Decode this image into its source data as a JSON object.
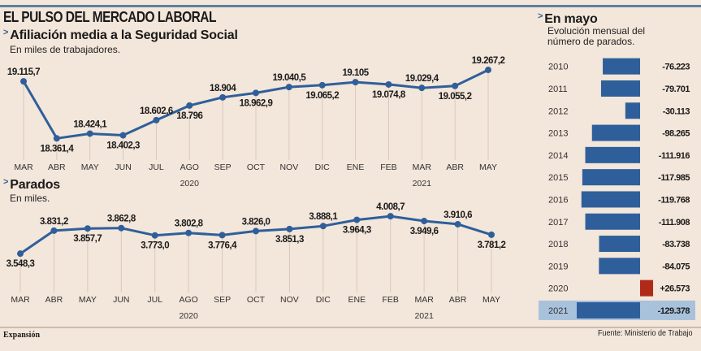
{
  "header": {
    "title": "EL PULSO DEL MERCADO LABORAL"
  },
  "footer": {
    "brand": "Expansión",
    "source": "Fuente: Ministerio de Trabajo"
  },
  "colors": {
    "line": "#2f5f9a",
    "bar_negative": "#2f5f9a",
    "bar_positive": "#b02a1a",
    "highlight_row": "#a9c2dc",
    "background": "#f3e6da"
  },
  "chart_data": [
    {
      "type": "line",
      "title": "Afiliación media a la Seguridad Social",
      "subtitle": "En miles de trabajadores.",
      "categories": [
        "MAR",
        "ABR",
        "MAY",
        "JUN",
        "JUL",
        "AGO",
        "SEP",
        "OCT",
        "NOV",
        "DIC",
        "ENE",
        "FEB",
        "MAR",
        "ABR",
        "MAY"
      ],
      "year_labels": [
        {
          "label": "2020",
          "at_index": 5
        },
        {
          "label": "2021",
          "at_index": 12
        }
      ],
      "values": [
        19115.7,
        18361.4,
        18424.1,
        18402.3,
        18602.6,
        18796,
        18904,
        18962.9,
        19040.5,
        19065.2,
        19105,
        19074.8,
        19029.4,
        19055.2,
        19267.2
      ],
      "value_labels": [
        "19.115,7",
        "18.361,4",
        "18.424,1",
        "18.402,3",
        "18.602,6",
        "18.796",
        "18.904",
        "18.962,9",
        "19.040,5",
        "19.065,2",
        "19.105",
        "19.074,8",
        "19.029,4",
        "19.055,2",
        "19.267,2"
      ],
      "label_positions": [
        "above",
        "below",
        "above",
        "below",
        "above",
        "below",
        "above",
        "below",
        "above",
        "below",
        "above",
        "below",
        "above",
        "below",
        "above"
      ],
      "ylim": [
        18300,
        19300
      ],
      "xlabel": "",
      "ylabel": ""
    },
    {
      "type": "line",
      "title": "Parados",
      "subtitle": "En miles.",
      "categories": [
        "MAR",
        "ABR",
        "MAY",
        "JUN",
        "JUL",
        "AGO",
        "SEP",
        "OCT",
        "NOV",
        "DIC",
        "ENE",
        "FEB",
        "MAR",
        "ABR",
        "MAY"
      ],
      "year_labels": [
        {
          "label": "2020",
          "at_index": 5
        },
        {
          "label": "2021",
          "at_index": 12
        }
      ],
      "values": [
        3548.3,
        3831.2,
        3857.7,
        3862.8,
        3773.0,
        3802.8,
        3776.4,
        3826.0,
        3851.3,
        3888.1,
        3964.3,
        4008.7,
        3949.6,
        3910.6,
        3781.2
      ],
      "value_labels": [
        "3.548,3",
        "3.831,2",
        "3.857,7",
        "3.862,8",
        "3.773,0",
        "3.802,8",
        "3.776,4",
        "3.826,0",
        "3.851,3",
        "3.888,1",
        "3.964,3",
        "4.008,7",
        "3.949,6",
        "3.910,6",
        "3.781,2"
      ],
      "label_positions": [
        "below",
        "above",
        "below",
        "above",
        "below",
        "above",
        "below",
        "above",
        "below",
        "above",
        "below",
        "above",
        "below",
        "above",
        "below"
      ],
      "ylim": [
        3500,
        4050
      ],
      "xlabel": "",
      "ylabel": ""
    },
    {
      "type": "bar",
      "orientation": "horizontal",
      "title": "En mayo",
      "subtitle_lines": [
        "Evolución mensual del",
        "número de parados."
      ],
      "categories": [
        "2010",
        "2011",
        "2012",
        "2013",
        "2014",
        "2015",
        "2016",
        "2017",
        "2018",
        "2019",
        "2020",
        "2021"
      ],
      "values": [
        -76223,
        -79701,
        -30113,
        -98265,
        -111916,
        -117985,
        -119768,
        -111908,
        -83738,
        -84075,
        26573,
        -129378
      ],
      "value_labels": [
        "-76.223",
        "-79.701",
        "-30.113",
        "-98.265",
        "-111.916",
        "-117.985",
        "-119.768",
        "-111.908",
        "-83.738",
        "-84.075",
        "+26.573",
        "-129.378"
      ],
      "highlighted": "2021"
    }
  ]
}
